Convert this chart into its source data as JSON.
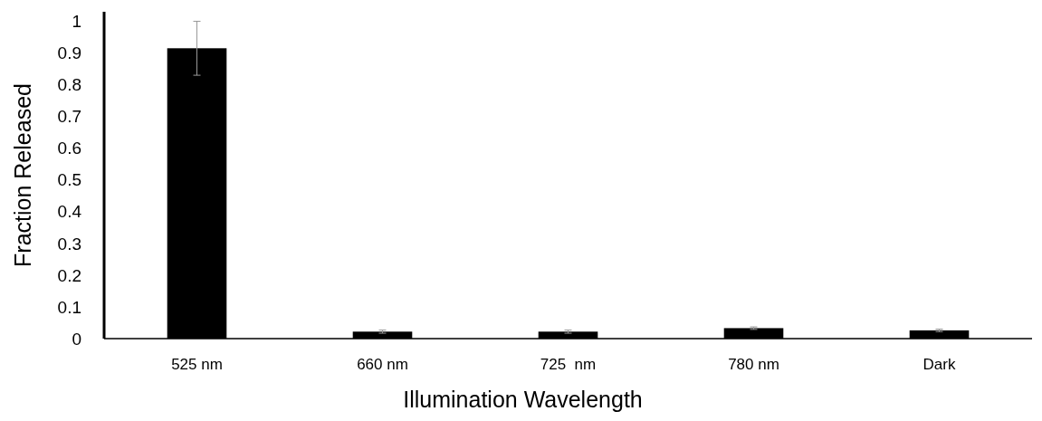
{
  "chart_data": {
    "type": "bar",
    "xlabel": "Illumination Wavelength",
    "ylabel": "Fraction Released",
    "categories": [
      "525 nm",
      "660 nm",
      "725  nm",
      "780 nm",
      "Dark"
    ],
    "values": [
      0.915,
      0.022,
      0.022,
      0.033,
      0.026
    ],
    "errors": [
      [
        0.83,
        1.0
      ],
      0.005,
      0.005,
      0.004,
      0.004
    ],
    "color": "#000000",
    "ylim": [
      0,
      1.03
    ],
    "yticks": [
      0,
      0.1,
      0.2,
      0.3,
      0.4,
      0.5,
      0.6,
      0.7,
      0.8,
      0.9,
      1
    ],
    "grid": false
  }
}
